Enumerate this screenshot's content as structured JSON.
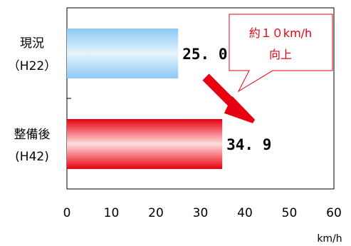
{
  "chart_data": {
    "type": "bar",
    "orientation": "horizontal",
    "categories": [
      {
        "line1": "現況",
        "line2": "（H22）"
      },
      {
        "line1": "整備後",
        "line2": "(H42)"
      }
    ],
    "values": [
      25.0,
      34.9
    ],
    "value_labels": [
      "25. 0",
      "34. 9"
    ],
    "bar_colors": [
      "#8ec8f5",
      "#e8000f"
    ],
    "bar_gradient_light": [
      "#e6f4fd",
      "#ffdede"
    ],
    "xlim": [
      0,
      60
    ],
    "xticks": [
      "0",
      "10",
      "20",
      "30",
      "40",
      "50",
      "60"
    ],
    "xlabel": "km/h",
    "title": "",
    "ylabel": "",
    "grid": false,
    "annotation": {
      "line1": "約１０km/h",
      "line2": "向上",
      "color": "#e60012"
    }
  }
}
